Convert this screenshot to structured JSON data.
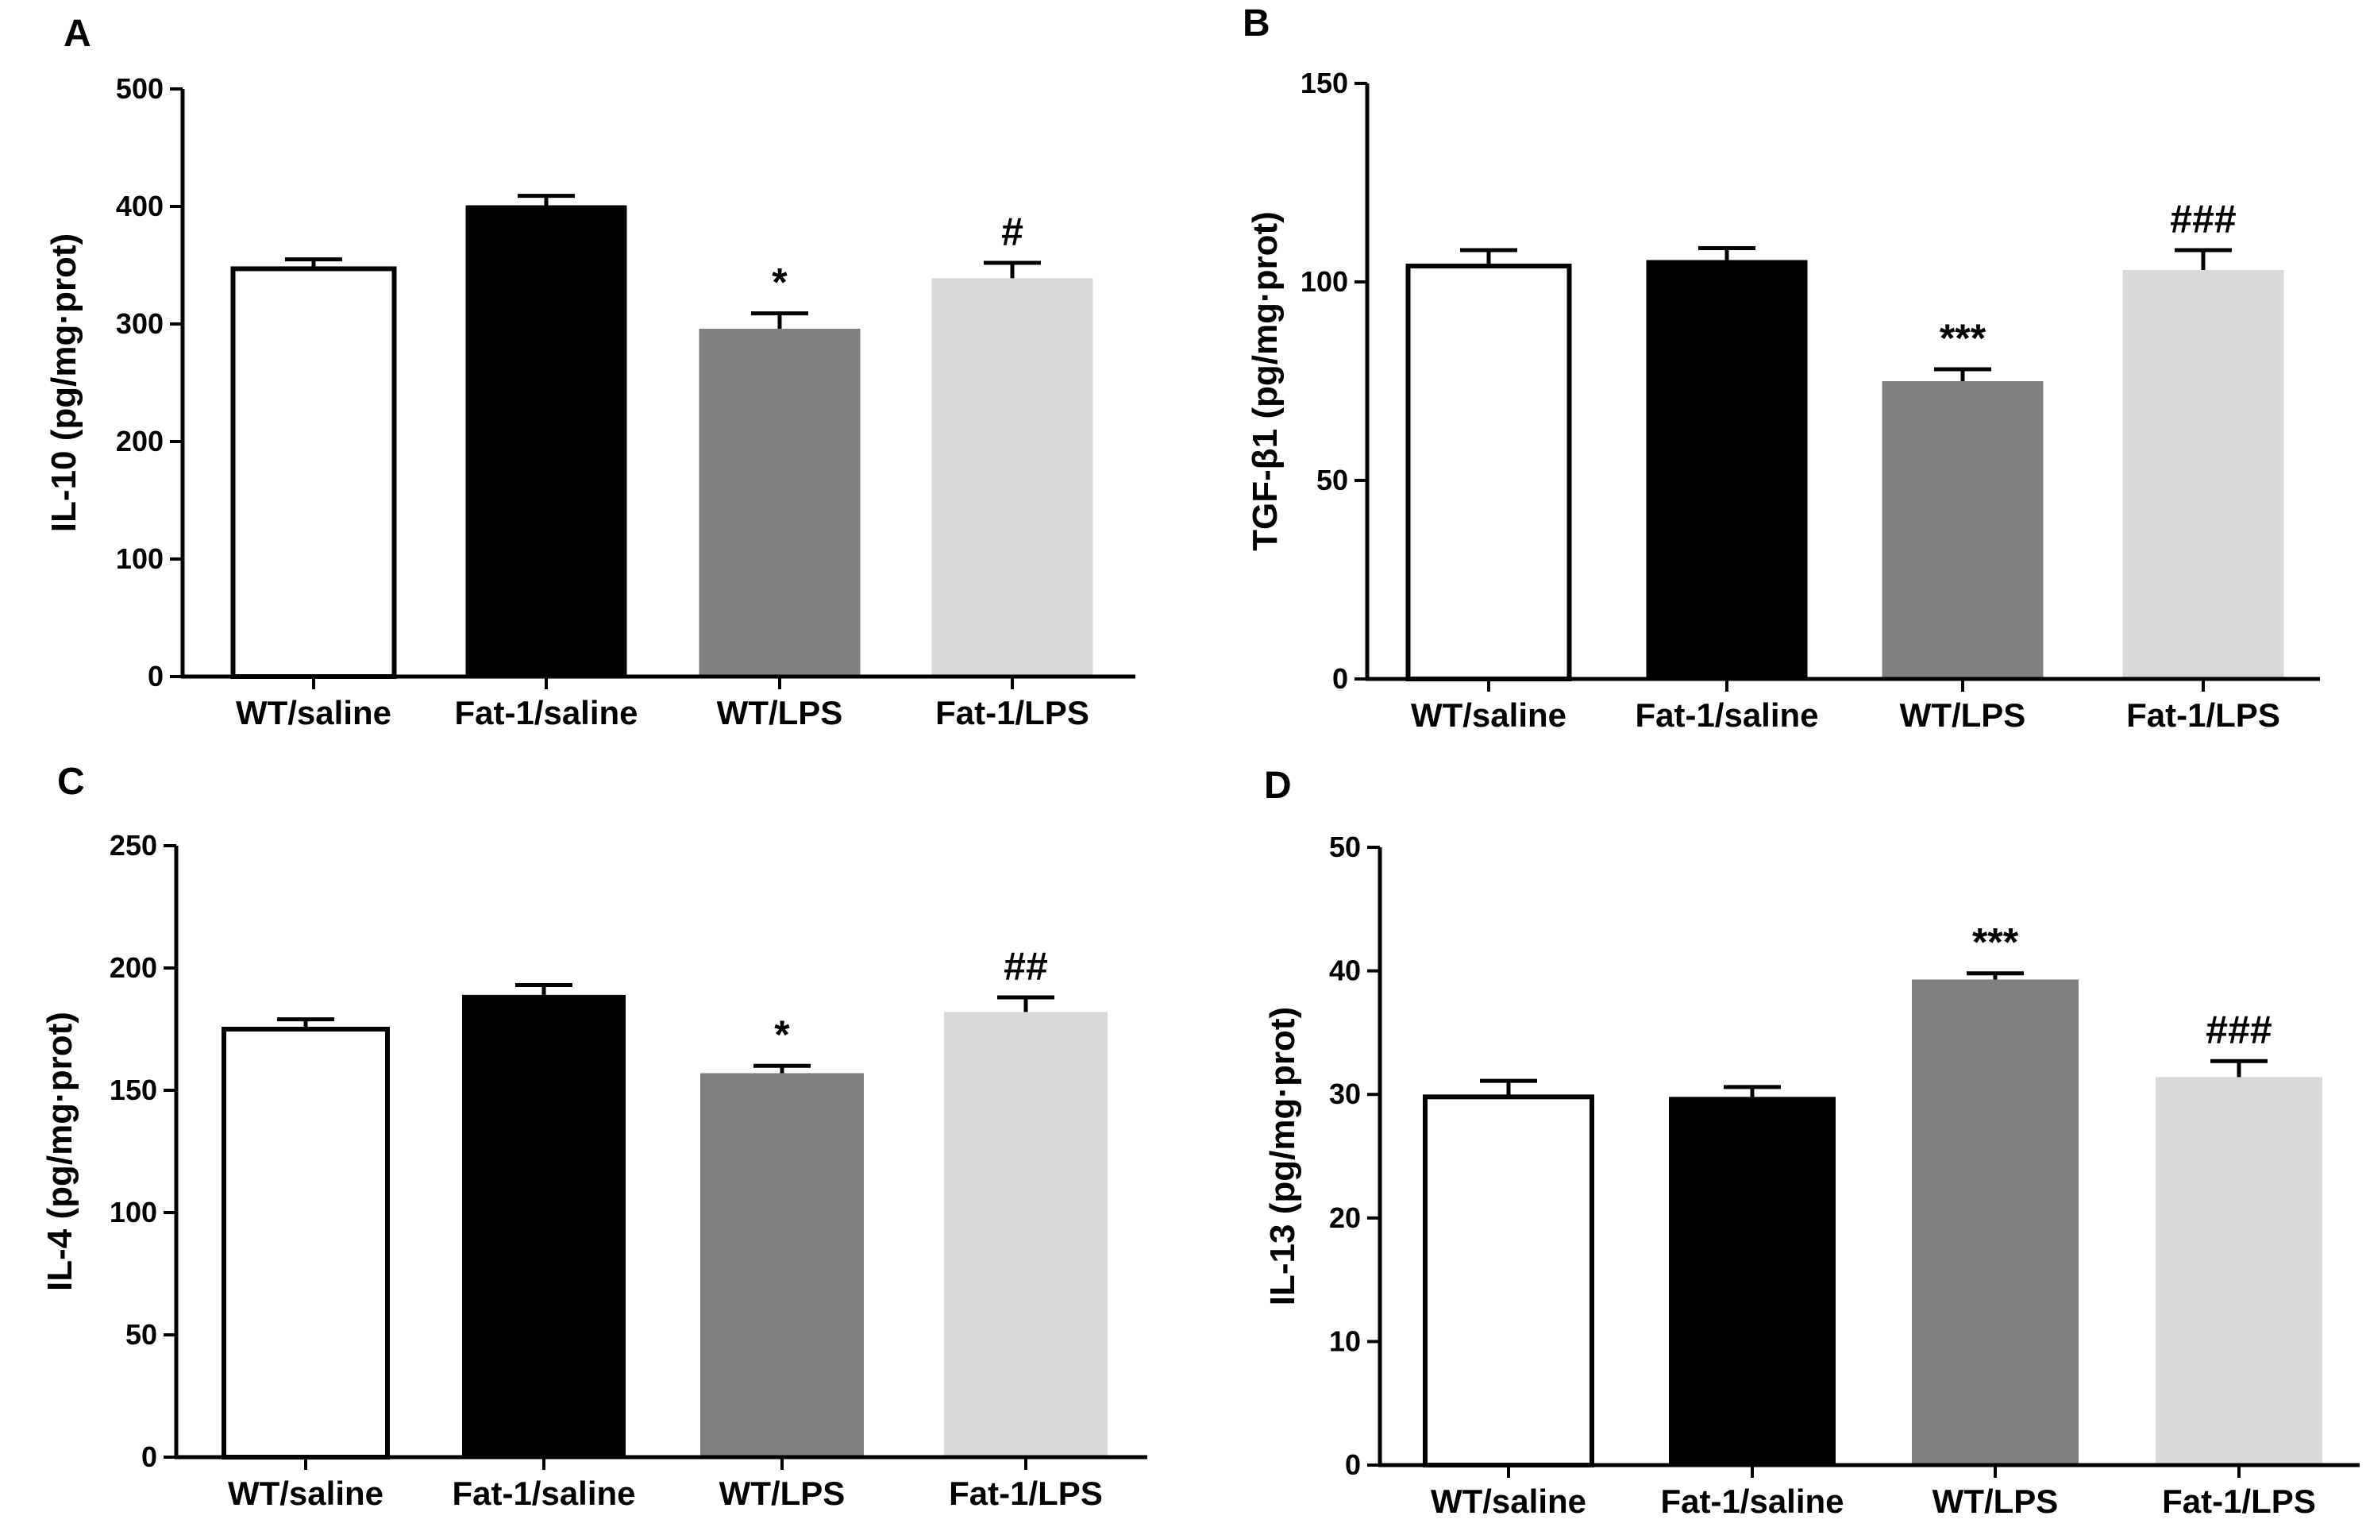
{
  "chart_data": [
    {
      "panel": "A",
      "type": "bar",
      "title": "",
      "xlabel": "",
      "ylabel": "IL-10 (pg/mg·prot)",
      "ylim": [
        0,
        500
      ],
      "yticks": [
        0,
        100,
        200,
        300,
        400,
        500
      ],
      "categories": [
        "WT/saline",
        "Fat-1/saline",
        "WT/LPS",
        "Fat-1/LPS"
      ],
      "values": [
        347,
        401,
        296,
        339
      ],
      "errors": [
        8,
        8,
        13,
        13
      ],
      "fills": [
        "#ffffff",
        "#000000",
        "#808080",
        "#d9d9d9"
      ],
      "significance": [
        "",
        "",
        "*",
        "#"
      ]
    },
    {
      "panel": "B",
      "type": "bar",
      "title": "",
      "xlabel": "",
      "ylabel": "TGF-β1 (pg/mg·prot)",
      "ylim": [
        0,
        150
      ],
      "yticks": [
        0,
        50,
        100,
        150
      ],
      "categories": [
        "WT/saline",
        "Fat-1/saline",
        "WT/LPS",
        "Fat-1/LPS"
      ],
      "values": [
        104,
        105.5,
        75,
        103
      ],
      "errors": [
        4,
        3,
        3,
        5
      ],
      "fills": [
        "#ffffff",
        "#000000",
        "#808080",
        "#d9d9d9"
      ],
      "significance": [
        "",
        "",
        "***",
        "###"
      ]
    },
    {
      "panel": "C",
      "type": "bar",
      "title": "",
      "xlabel": "",
      "ylabel": "IL-4 (pg/mg·prot)",
      "ylim": [
        0,
        250
      ],
      "yticks": [
        0,
        50,
        100,
        150,
        200,
        250
      ],
      "categories": [
        "WT/saline",
        "Fat-1/saline",
        "WT/LPS",
        "Fat-1/LPS"
      ],
      "values": [
        175,
        189,
        157,
        182
      ],
      "errors": [
        4,
        4,
        3,
        6
      ],
      "fills": [
        "#ffffff",
        "#000000",
        "#808080",
        "#d9d9d9"
      ],
      "significance": [
        "",
        "",
        "*",
        "##"
      ]
    },
    {
      "panel": "D",
      "type": "bar",
      "title": "",
      "xlabel": "",
      "ylabel": "IL-13 (pg/mg·prot)",
      "ylim": [
        0,
        50
      ],
      "yticks": [
        0,
        10,
        20,
        30,
        40,
        50
      ],
      "categories": [
        "WT/saline",
        "Fat-1/saline",
        "WT/LPS",
        "Fat-1/LPS"
      ],
      "values": [
        29.8,
        29.8,
        39.3,
        31.4
      ],
      "errors": [
        1.3,
        0.8,
        0.5,
        1.3
      ],
      "fills": [
        "#ffffff",
        "#000000",
        "#808080",
        "#d9d9d9"
      ],
      "significance": [
        "",
        "",
        "***",
        "###"
      ]
    }
  ]
}
